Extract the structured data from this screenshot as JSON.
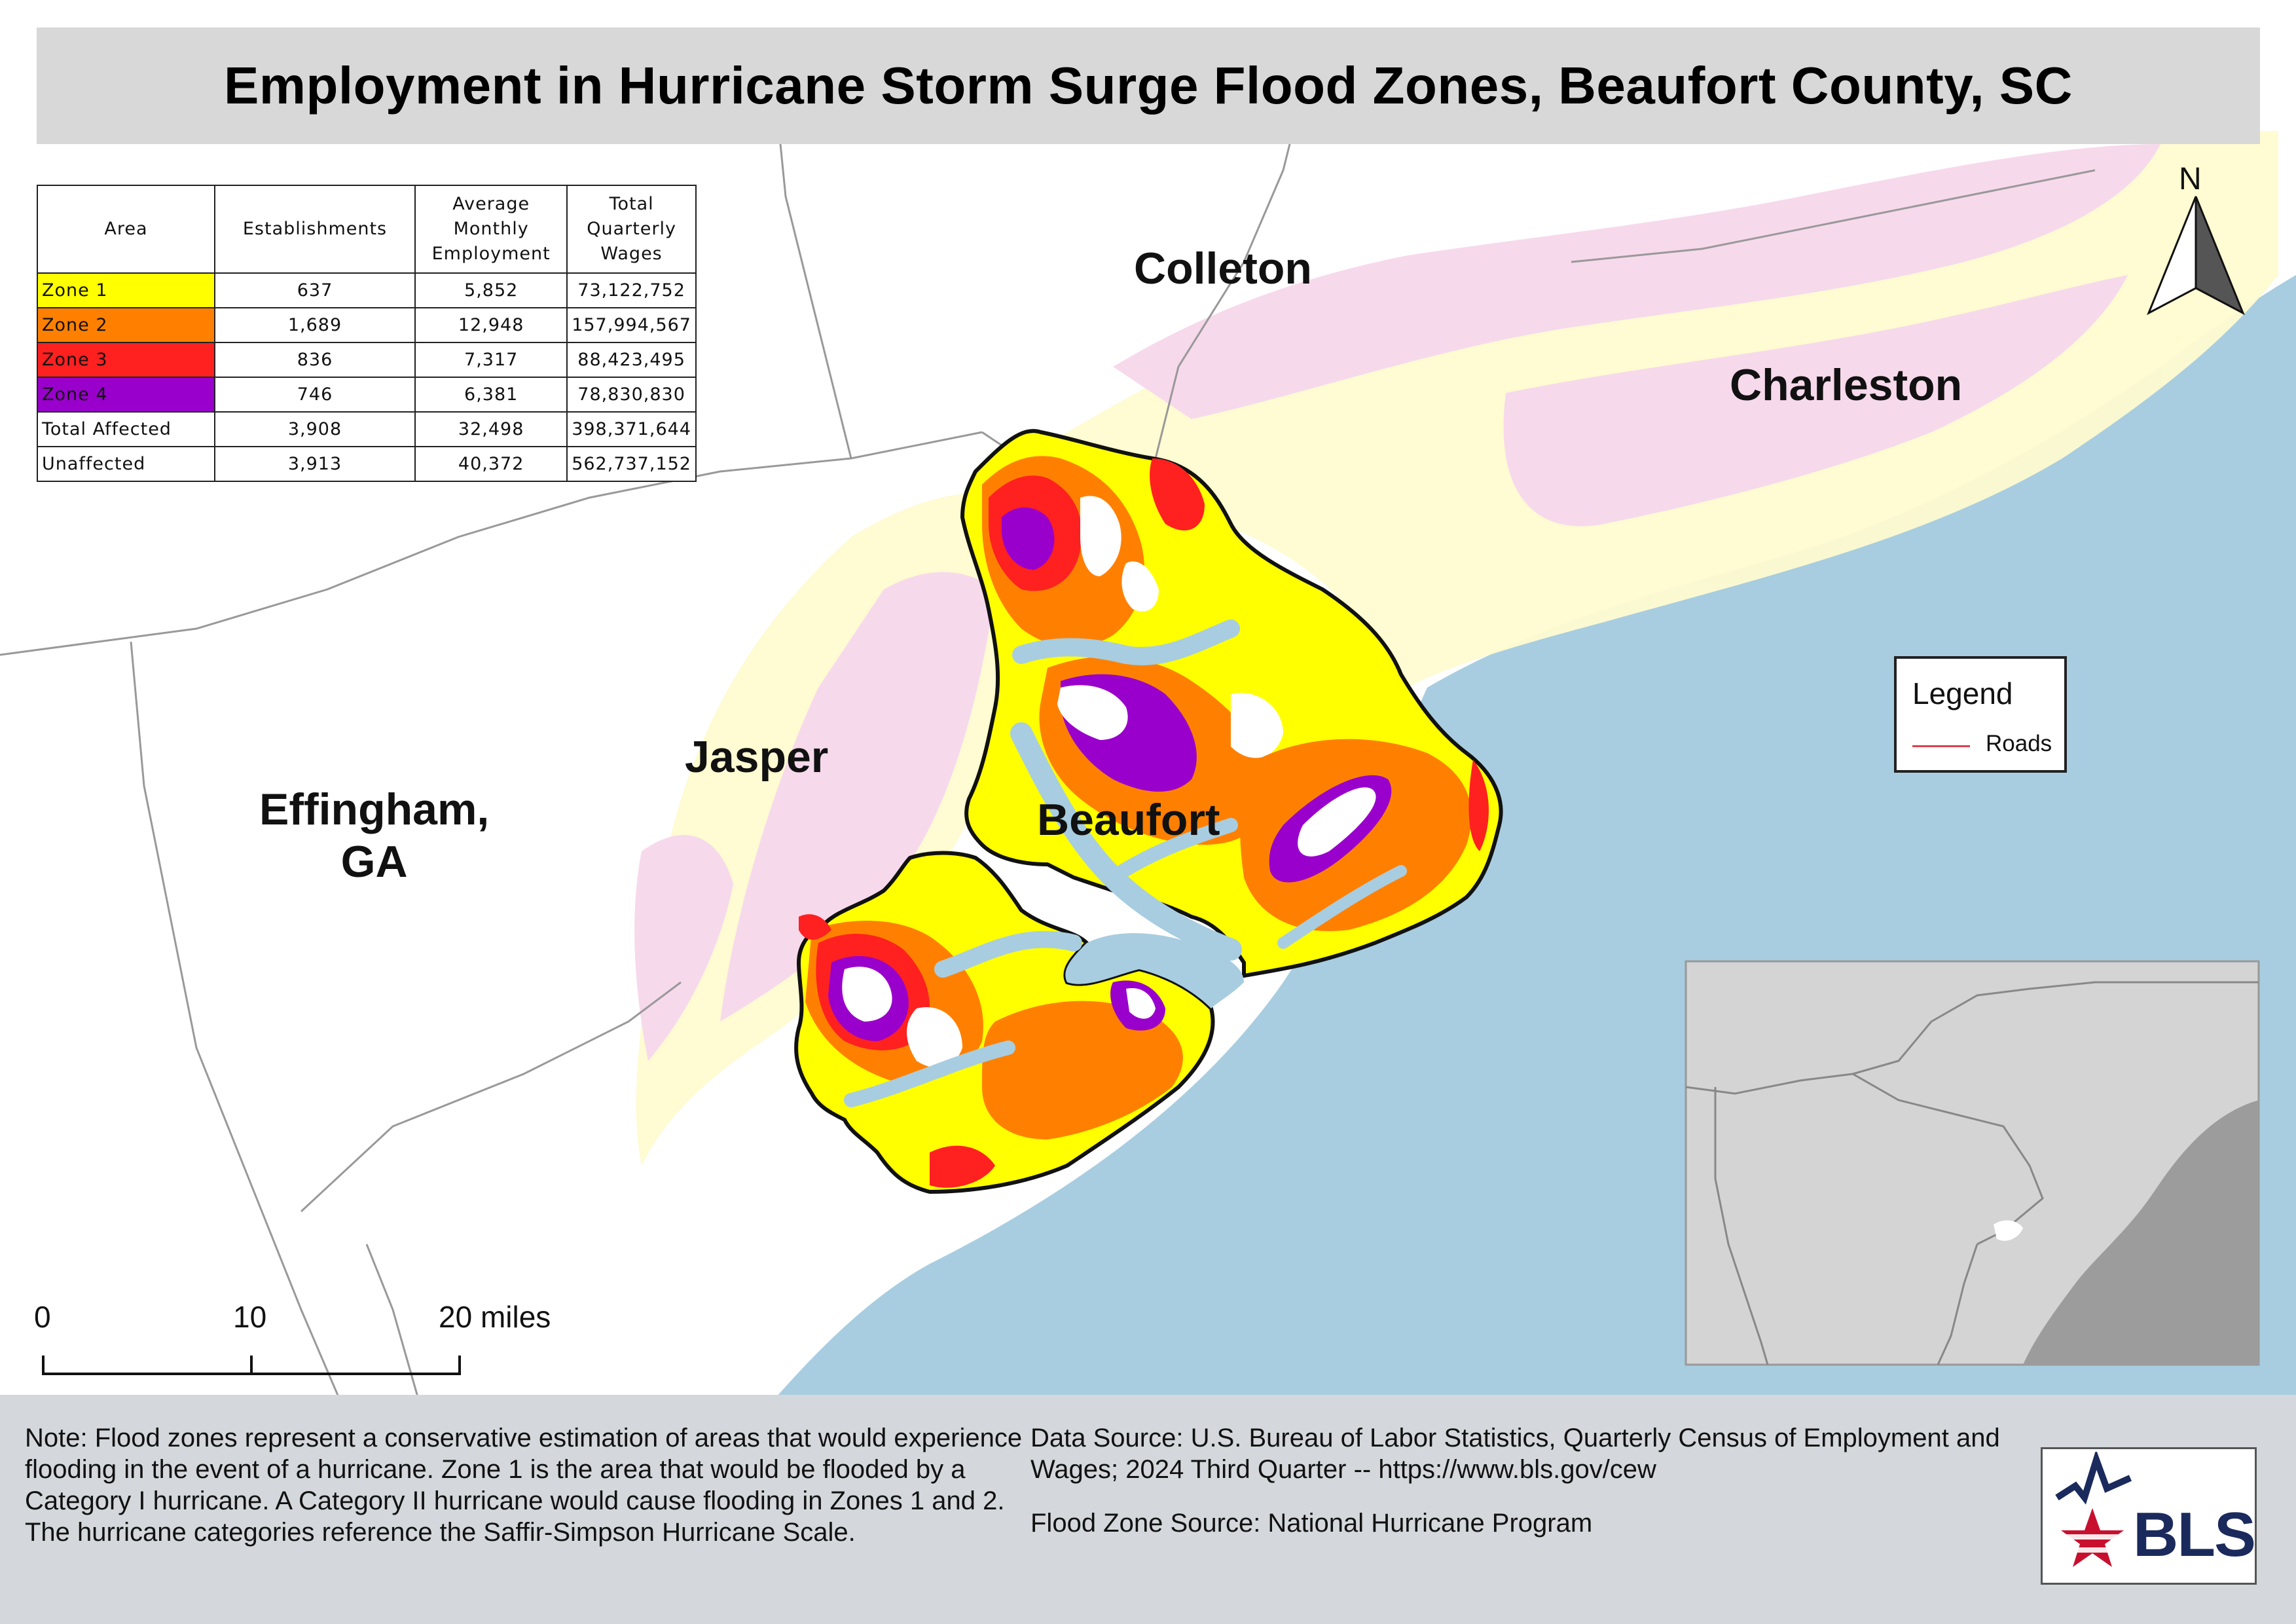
{
  "title": "Employment in Hurricane Storm Surge Flood Zones, Beaufort County, SC",
  "table": {
    "headers": [
      "Area",
      "Establishments",
      "Average Monthly Employment",
      "Total Quarterly Wages"
    ],
    "rows": [
      {
        "area": "Zone 1",
        "color": "#ffff00",
        "establishments": "637",
        "employment": "5,852",
        "wages": "73,122,752"
      },
      {
        "area": "Zone 2",
        "color": "#ff8000",
        "establishments": "1,689",
        "employment": "12,948",
        "wages": "157,994,567"
      },
      {
        "area": "Zone 3",
        "color": "#ff2020",
        "establishments": "836",
        "employment": "7,317",
        "wages": "88,423,495"
      },
      {
        "area": "Zone 4",
        "color": "#9900cc",
        "establishments": "746",
        "employment": "6,381",
        "wages": "78,830,830"
      },
      {
        "area": "Total Affected",
        "color": "#ffffff",
        "establishments": "3,908",
        "employment": "32,498",
        "wages": "398,371,644"
      },
      {
        "area": "Unaffected",
        "color": "#ffffff",
        "establishments": "3,913",
        "employment": "40,372",
        "wages": "562,737,152"
      }
    ]
  },
  "counties": {
    "colleton": "Colleton",
    "charleston": "Charleston",
    "jasper": "Jasper",
    "beaufort": "Beaufort",
    "effingham_line1": "Effingham,",
    "effingham_line2": "GA"
  },
  "legend": {
    "title": "Legend",
    "roads_label": "Roads",
    "roads_color": "#e04050"
  },
  "north_arrow": "N",
  "scale_bar": {
    "tick_0": "0",
    "tick_10": "10",
    "tick_20": "20 miles"
  },
  "footer": {
    "note": "Note: Flood zones represent a conservative estimation of areas that would experience flooding in the event of a hurricane. Zone 1 is the area that would be flooded by a Category I hurricane. A Category II hurricane would cause flooding in Zones 1 and 2. The hurricane categories reference the Saffir-Simpson Hurricane Scale.",
    "data_source": "Data Source: U.S. Bureau of Labor Statistics, Quarterly Census of Employment and Wages; 2024 Third Quarter -- https://www.bls.gov/cew",
    "flood_source": "Flood Zone Source: National Hurricane Program"
  },
  "logo_text": "BLS",
  "colors": {
    "ocean": "#a8cde0",
    "land": "#ffffff",
    "zone1": "#ffff00",
    "zone2": "#ff8000",
    "zone3": "#ff2020",
    "zone4": "#9900cc",
    "neighbor_flood_pink": "#f7d8ec",
    "neighbor_flood_yellow": "#fffbd0"
  }
}
